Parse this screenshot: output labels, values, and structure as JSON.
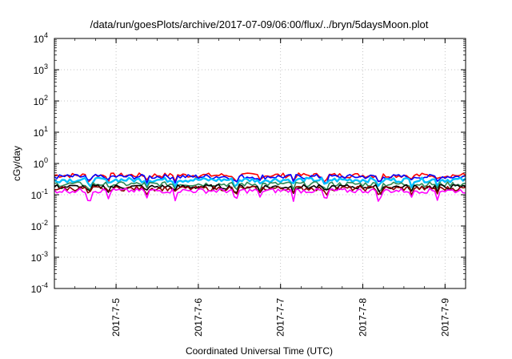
{
  "chart_data": {
    "type": "line",
    "title": "/data/run/goesPlots/archive/2017-07-09/06:00/flux/../bryn/5daysMoon.plot",
    "xlabel": "Coordinated Universal Time (UTC)",
    "ylabel": "cGy/day",
    "yscale": "log",
    "ylim": [
      0.0001,
      10000
    ],
    "xlim": [
      "2017-07-04 06:00",
      "2017-07-09 06:00"
    ],
    "grid": true,
    "x_tick_labels": [
      "2017-7-5",
      "2017-7-6",
      "2017-7-7",
      "2017-7-8",
      "2017-7-9"
    ],
    "y_ticks": [
      {
        "base": "10",
        "exp": "-4"
      },
      {
        "base": "10",
        "exp": "-3"
      },
      {
        "base": "10",
        "exp": "-2"
      },
      {
        "base": "10",
        "exp": "-1"
      },
      {
        "base": "10",
        "exp": "0"
      },
      {
        "base": "10",
        "exp": "1"
      },
      {
        "base": "10",
        "exp": "2"
      },
      {
        "base": "10",
        "exp": "3"
      },
      {
        "base": "10",
        "exp": "4"
      }
    ],
    "series": [
      {
        "color": "#ff0000",
        "level": 0.42,
        "x_range": [
          "2017-07-04 06:00",
          "2017-07-09 06:00"
        ]
      },
      {
        "color": "#0000ff",
        "level": 0.38,
        "x_range": [
          "2017-07-04 06:00",
          "2017-07-09 06:00"
        ]
      },
      {
        "color": "#00bfff",
        "level": 0.3,
        "x_range": [
          "2017-07-04 06:00",
          "2017-07-09 06:00"
        ]
      },
      {
        "color": "#2e8b57",
        "level": 0.22,
        "x_range": [
          "2017-07-04 06:00",
          "2017-07-09 06:00"
        ]
      },
      {
        "color": "#000000",
        "level": 0.18,
        "x_range": [
          "2017-07-04 06:00",
          "2017-07-09 06:00"
        ]
      },
      {
        "color": "#8b0000",
        "level": 0.16,
        "x_range": [
          "2017-07-04 06:00",
          "2017-07-09 06:00"
        ]
      },
      {
        "color": "#ff00ff",
        "level": 0.135,
        "x_range": [
          "2017-07-04 06:00",
          "2017-07-09 06:00"
        ]
      }
    ]
  }
}
